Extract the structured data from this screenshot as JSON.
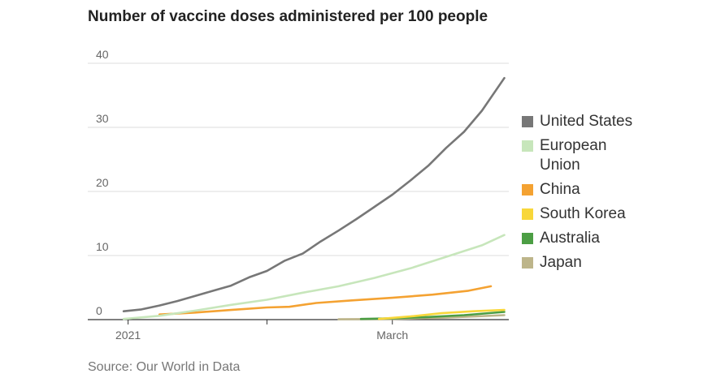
{
  "title": "Number of vaccine doses administered per 100 people",
  "source": "Source: Our World in Data",
  "chart_data": {
    "type": "line",
    "title": "Number of vaccine doses administered per 100 people",
    "xlabel": "",
    "ylabel": "",
    "x_range": [
      "2020-12-23",
      "2021-03-27"
    ],
    "x_ticks": [
      {
        "date": "2021-01-01",
        "label": "2021"
      },
      {
        "date": "2021-02-01",
        "label": ""
      },
      {
        "date": "2021-03-01",
        "label": "March"
      }
    ],
    "ylim": [
      0,
      40
    ],
    "y_ticks": [
      0,
      10,
      20,
      30,
      40
    ],
    "grid": true,
    "legend_position": "right",
    "series": [
      {
        "name": "United States",
        "color": "#777777",
        "points": [
          [
            "2020-12-31",
            1.3
          ],
          [
            "2021-01-04",
            1.6
          ],
          [
            "2021-01-08",
            2.2
          ],
          [
            "2021-01-12",
            2.9
          ],
          [
            "2021-01-16",
            3.7
          ],
          [
            "2021-01-20",
            4.5
          ],
          [
            "2021-01-24",
            5.3
          ],
          [
            "2021-01-28",
            6.6
          ],
          [
            "2021-02-01",
            7.6
          ],
          [
            "2021-02-05",
            9.2
          ],
          [
            "2021-02-09",
            10.3
          ],
          [
            "2021-02-13",
            12.2
          ],
          [
            "2021-02-17",
            13.9
          ],
          [
            "2021-02-21",
            15.7
          ],
          [
            "2021-02-25",
            17.6
          ],
          [
            "2021-03-01",
            19.5
          ],
          [
            "2021-03-05",
            21.7
          ],
          [
            "2021-03-09",
            24.0
          ],
          [
            "2021-03-13",
            26.8
          ],
          [
            "2021-03-17",
            29.3
          ],
          [
            "2021-03-21",
            32.6
          ],
          [
            "2021-03-26",
            37.7
          ]
        ]
      },
      {
        "name": "European Union",
        "color": "#c7e6bb",
        "points": [
          [
            "2020-12-31",
            0.1
          ],
          [
            "2021-01-08",
            0.6
          ],
          [
            "2021-01-16",
            1.4
          ],
          [
            "2021-01-24",
            2.3
          ],
          [
            "2021-02-01",
            3.1
          ],
          [
            "2021-02-09",
            4.2
          ],
          [
            "2021-02-17",
            5.2
          ],
          [
            "2021-02-25",
            6.5
          ],
          [
            "2021-03-05",
            8.0
          ],
          [
            "2021-03-13",
            9.8
          ],
          [
            "2021-03-21",
            11.6
          ],
          [
            "2021-03-26",
            13.2
          ]
        ]
      },
      {
        "name": "China",
        "color": "#f4a232",
        "points": [
          [
            "2021-01-08",
            0.8
          ],
          [
            "2021-01-16",
            1.1
          ],
          [
            "2021-01-24",
            1.5
          ],
          [
            "2021-02-01",
            1.9
          ],
          [
            "2021-02-06",
            2.0
          ],
          [
            "2021-02-12",
            2.6
          ],
          [
            "2021-02-20",
            3.0
          ],
          [
            "2021-03-01",
            3.4
          ],
          [
            "2021-03-10",
            3.9
          ],
          [
            "2021-03-18",
            4.5
          ],
          [
            "2021-03-23",
            5.2
          ]
        ]
      },
      {
        "name": "South Korea",
        "color": "#f8d73a",
        "points": [
          [
            "2021-02-26",
            0.1
          ],
          [
            "2021-03-05",
            0.5
          ],
          [
            "2021-03-12",
            1.0
          ],
          [
            "2021-03-19",
            1.3
          ],
          [
            "2021-03-26",
            1.5
          ]
        ]
      },
      {
        "name": "Australia",
        "color": "#4c9e44",
        "points": [
          [
            "2021-02-22",
            0.1
          ],
          [
            "2021-03-01",
            0.2
          ],
          [
            "2021-03-09",
            0.4
          ],
          [
            "2021-03-17",
            0.7
          ],
          [
            "2021-03-26",
            1.2
          ]
        ]
      },
      {
        "name": "Japan",
        "color": "#bdb58a",
        "points": [
          [
            "2021-02-17",
            0.05
          ],
          [
            "2021-03-01",
            0.1
          ],
          [
            "2021-03-13",
            0.3
          ],
          [
            "2021-03-26",
            0.7
          ]
        ]
      }
    ]
  }
}
